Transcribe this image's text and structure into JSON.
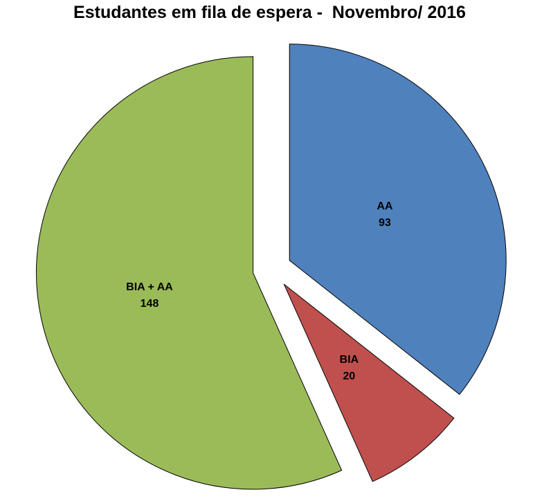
{
  "window": {
    "background_color": "#FFFFFF"
  },
  "chart_data": {
    "type": "pie",
    "title": "Estudantes em fila de espera -  Novembro/ 2016",
    "categories": [
      "AA",
      "BIA",
      "BIA + AA"
    ],
    "values": [
      93,
      20,
      148
    ],
    "slice_labels": [
      [
        "AA",
        "93"
      ],
      [
        "BIA",
        "20"
      ],
      [
        "BIA + AA",
        "148"
      ]
    ],
    "colors": [
      "#4F81BD",
      "#C0504D",
      "#9BBB59"
    ],
    "slice_border_color": "#000000",
    "title_color": "#000000",
    "label_color": "#000000",
    "start_angle_deg": 0,
    "direction": "clockwise",
    "exploded": true,
    "labels_position": "inside",
    "legend": "none"
  }
}
